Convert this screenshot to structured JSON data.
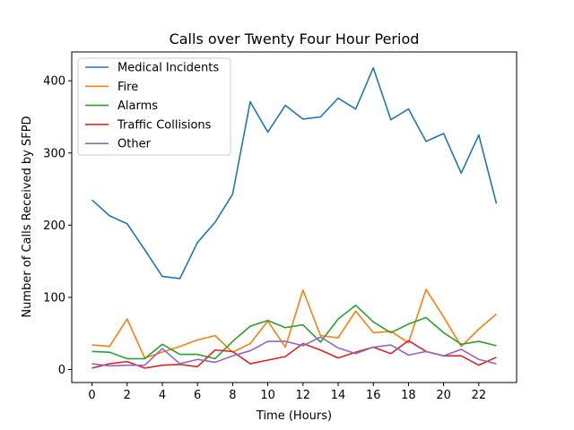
{
  "chart_data": {
    "type": "line",
    "title": "Calls over Twenty Four Hour Period",
    "xlabel": "Time (Hours)",
    "ylabel": "Number of Calls Received by SFPD",
    "x": [
      0,
      1,
      2,
      3,
      4,
      5,
      6,
      7,
      8,
      9,
      10,
      11,
      12,
      13,
      14,
      15,
      16,
      17,
      18,
      19,
      20,
      21,
      22,
      23
    ],
    "xlim": [
      -1.15,
      24.15
    ],
    "ylim": [
      -18,
      440
    ],
    "xticks": [
      0,
      2,
      4,
      6,
      8,
      10,
      12,
      14,
      16,
      18,
      20,
      22
    ],
    "yticks": [
      0,
      100,
      200,
      300,
      400
    ],
    "legend_position": "upper-left",
    "grid": false,
    "series": [
      {
        "name": "Medical Incidents",
        "color": "#1f77b4",
        "values": [
          235,
          213,
          202,
          166,
          129,
          126,
          176,
          204,
          243,
          371,
          329,
          366,
          347,
          350,
          376,
          361,
          418,
          346,
          361,
          316,
          327,
          272,
          325,
          230
        ]
      },
      {
        "name": "Fire",
        "color": "#ff7f0e",
        "values": [
          34,
          32,
          70,
          16,
          24,
          32,
          41,
          47,
          24,
          36,
          67,
          31,
          110,
          47,
          44,
          81,
          51,
          53,
          37,
          111,
          73,
          32,
          56,
          77
        ]
      },
      {
        "name": "Alarms",
        "color": "#2ca02c",
        "values": [
          25,
          24,
          15,
          15,
          35,
          21,
          21,
          15,
          39,
          60,
          68,
          58,
          62,
          38,
          70,
          89,
          66,
          51,
          63,
          72,
          51,
          35,
          39,
          33
        ]
      },
      {
        "name": "Traffic Collisions",
        "color": "#d62728",
        "values": [
          2,
          8,
          11,
          2,
          6,
          7,
          4,
          27,
          25,
          8,
          13,
          18,
          36,
          27,
          16,
          24,
          31,
          22,
          40,
          25,
          19,
          19,
          6,
          17
        ]
      },
      {
        "name": "Other",
        "color": "#9467bd",
        "values": [
          8,
          5,
          6,
          6,
          29,
          8,
          14,
          10,
          19,
          26,
          39,
          39,
          33,
          45,
          30,
          22,
          31,
          34,
          20,
          25,
          19,
          28,
          14,
          8
        ]
      }
    ]
  }
}
